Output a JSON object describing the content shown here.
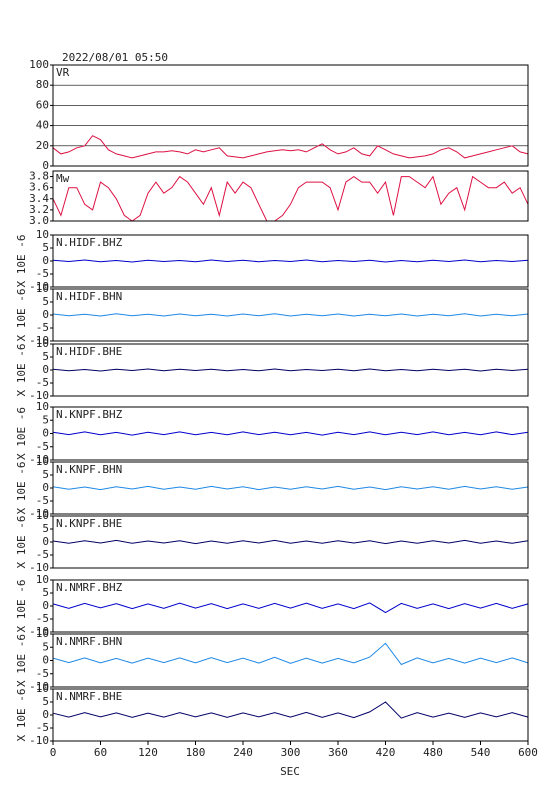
{
  "title": "2022/08/01 05:50",
  "x_axis": {
    "label": "SEC",
    "xlim": [
      0,
      600
    ],
    "xticks": [
      0,
      60,
      120,
      180,
      240,
      300,
      360,
      420,
      480,
      540,
      600
    ]
  },
  "chart_data": [
    {
      "type": "line",
      "label": "VR",
      "color": "#dd1144",
      "grid": true,
      "ylim": [
        0,
        100
      ],
      "yticks": [
        0,
        20,
        40,
        60,
        80,
        100
      ],
      "x": [
        0,
        10,
        20,
        30,
        40,
        50,
        60,
        70,
        80,
        90,
        100,
        110,
        120,
        130,
        140,
        150,
        160,
        170,
        180,
        190,
        200,
        210,
        220,
        230,
        240,
        250,
        260,
        270,
        280,
        290,
        300,
        310,
        320,
        330,
        340,
        350,
        360,
        370,
        380,
        390,
        400,
        410,
        420,
        430,
        440,
        450,
        460,
        470,
        480,
        490,
        500,
        510,
        520,
        530,
        540,
        550,
        560,
        570,
        580,
        590,
        600
      ],
      "values": [
        18,
        12,
        14,
        18,
        20,
        30,
        26,
        16,
        12,
        10,
        8,
        10,
        12,
        14,
        14,
        15,
        14,
        12,
        16,
        14,
        16,
        18,
        10,
        9,
        8,
        10,
        12,
        14,
        15,
        16,
        15,
        16,
        14,
        18,
        22,
        16,
        12,
        14,
        18,
        12,
        10,
        20,
        16,
        12,
        10,
        8,
        9,
        10,
        12,
        16,
        18,
        14,
        8,
        10,
        12,
        14,
        16,
        18,
        20,
        14,
        12
      ]
    },
    {
      "type": "line",
      "label": "Mw",
      "color": "#dd1144",
      "grid": false,
      "ylim": [
        3.0,
        3.9
      ],
      "yticks": [
        {
          "value": 3,
          "label": "3.0"
        },
        3.2,
        3.4,
        3.6,
        3.8
      ],
      "x": [
        0,
        10,
        20,
        30,
        40,
        50,
        60,
        70,
        80,
        90,
        100,
        110,
        120,
        130,
        140,
        150,
        160,
        170,
        180,
        190,
        200,
        210,
        220,
        230,
        240,
        250,
        260,
        270,
        280,
        290,
        300,
        310,
        320,
        330,
        340,
        350,
        360,
        370,
        380,
        390,
        400,
        410,
        420,
        430,
        440,
        450,
        460,
        470,
        480,
        490,
        500,
        510,
        520,
        530,
        540,
        550,
        560,
        570,
        580,
        590,
        600
      ],
      "values": [
        3.4,
        3.1,
        3.6,
        3.6,
        3.3,
        3.2,
        3.7,
        3.6,
        3.4,
        3.1,
        3.0,
        3.1,
        3.5,
        3.7,
        3.5,
        3.6,
        3.8,
        3.7,
        3.5,
        3.3,
        3.6,
        3.1,
        3.7,
        3.5,
        3.7,
        3.6,
        3.3,
        3.0,
        3.0,
        3.1,
        3.3,
        3.6,
        3.7,
        3.7,
        3.7,
        3.6,
        3.2,
        3.7,
        3.8,
        3.7,
        3.7,
        3.5,
        3.7,
        3.1,
        3.8,
        3.8,
        3.7,
        3.6,
        3.8,
        3.3,
        3.5,
        3.6,
        3.2,
        3.8,
        3.7,
        3.6,
        3.6,
        3.7,
        3.5,
        3.6,
        3.3
      ]
    },
    {
      "type": "line",
      "label": "N.HIDF.BHZ",
      "y_label": "X 10E -6",
      "color": "#0000cc",
      "ylim": [
        -10,
        10
      ],
      "yticks": [
        -10,
        -5,
        0,
        5,
        10
      ],
      "x": [
        0,
        20,
        40,
        60,
        80,
        100,
        120,
        140,
        160,
        180,
        200,
        220,
        240,
        260,
        280,
        300,
        320,
        340,
        360,
        380,
        400,
        420,
        440,
        460,
        480,
        500,
        520,
        540,
        560,
        580,
        600
      ],
      "values": [
        0.3,
        -0.2,
        0.4,
        -0.3,
        0.2,
        -0.4,
        0.3,
        -0.2,
        0.2,
        -0.3,
        0.4,
        -0.2,
        0.3,
        -0.3,
        0.2,
        -0.2,
        0.4,
        -0.3,
        0.2,
        -0.2,
        0.3,
        -0.4,
        0.2,
        -0.3,
        0.3,
        -0.2,
        0.4,
        -0.3,
        0.2,
        -0.2,
        0.3
      ]
    },
    {
      "type": "line",
      "label": "N.HIDF.BHN",
      "y_label": "X 10E -6",
      "color": "#1e88e5",
      "ylim": [
        -10,
        10
      ],
      "yticks": [
        -10,
        -5,
        0,
        5,
        10
      ],
      "x": [
        0,
        20,
        40,
        60,
        80,
        100,
        120,
        140,
        160,
        180,
        200,
        220,
        240,
        260,
        280,
        300,
        320,
        340,
        360,
        380,
        400,
        420,
        440,
        460,
        480,
        500,
        520,
        540,
        560,
        580,
        600
      ],
      "values": [
        0.4,
        -0.3,
        0.3,
        -0.4,
        0.5,
        -0.3,
        0.3,
        -0.4,
        0.4,
        -0.3,
        0.3,
        -0.4,
        0.4,
        -0.3,
        0.5,
        -0.4,
        0.3,
        -0.3,
        0.4,
        -0.4,
        0.3,
        -0.3,
        0.4,
        -0.4,
        0.3,
        -0.3,
        0.5,
        -0.4,
        0.3,
        -0.3,
        0.4
      ]
    },
    {
      "type": "line",
      "label": "N.HIDF.BHE",
      "y_label": "X 10E -6",
      "color": "#000066",
      "ylim": [
        -10,
        10
      ],
      "yticks": [
        -10,
        -5,
        0,
        5,
        10
      ],
      "x": [
        0,
        20,
        40,
        60,
        80,
        100,
        120,
        140,
        160,
        180,
        200,
        220,
        240,
        260,
        280,
        300,
        320,
        340,
        360,
        380,
        400,
        420,
        440,
        460,
        480,
        500,
        520,
        540,
        560,
        580,
        600
      ],
      "values": [
        0.3,
        -0.3,
        0.2,
        -0.4,
        0.3,
        -0.2,
        0.4,
        -0.3,
        0.3,
        -0.2,
        0.3,
        -0.3,
        0.2,
        -0.3,
        0.4,
        -0.3,
        0.2,
        -0.2,
        0.3,
        -0.3,
        0.4,
        -0.3,
        0.2,
        -0.3,
        0.3,
        -0.2,
        0.3,
        -0.4,
        0.3,
        -0.2,
        0.3
      ]
    },
    {
      "type": "line",
      "label": "N.KNPF.BHZ",
      "y_label": "X 10E -6",
      "color": "#0000cc",
      "ylim": [
        -10,
        10
      ],
      "yticks": [
        -10,
        -5,
        0,
        5,
        10
      ],
      "x": [
        0,
        20,
        40,
        60,
        80,
        100,
        120,
        140,
        160,
        180,
        200,
        220,
        240,
        260,
        280,
        300,
        320,
        340,
        360,
        380,
        400,
        420,
        440,
        460,
        480,
        500,
        520,
        540,
        560,
        580,
        600
      ],
      "values": [
        0.5,
        -0.4,
        0.6,
        -0.5,
        0.4,
        -0.6,
        0.5,
        -0.4,
        0.6,
        -0.5,
        0.4,
        -0.5,
        0.6,
        -0.4,
        0.5,
        -0.5,
        0.4,
        -0.6,
        0.5,
        -0.4,
        0.6,
        -0.5,
        0.5,
        -0.4,
        0.6,
        -0.5,
        0.4,
        -0.5,
        0.6,
        -0.4,
        0.5
      ]
    },
    {
      "type": "line",
      "label": "N.KNPF.BHN",
      "y_label": "X 10E -6",
      "color": "#1e88e5",
      "ylim": [
        -10,
        10
      ],
      "yticks": [
        -10,
        -5,
        0,
        5,
        10
      ],
      "x": [
        0,
        20,
        40,
        60,
        80,
        100,
        120,
        140,
        160,
        180,
        200,
        220,
        240,
        260,
        280,
        300,
        320,
        340,
        360,
        380,
        400,
        420,
        440,
        460,
        480,
        500,
        520,
        540,
        560,
        580,
        600
      ],
      "values": [
        0.5,
        -0.5,
        0.4,
        -0.6,
        0.5,
        -0.4,
        0.6,
        -0.5,
        0.4,
        -0.5,
        0.6,
        -0.4,
        0.5,
        -0.6,
        0.4,
        -0.5,
        0.5,
        -0.4,
        0.6,
        -0.5,
        0.4,
        -0.6,
        0.5,
        -0.4,
        0.5,
        -0.5,
        0.6,
        -0.4,
        0.5,
        -0.5,
        0.4
      ]
    },
    {
      "type": "line",
      "label": "N.KNPF.BHE",
      "y_label": "X 10E -6",
      "color": "#000066",
      "ylim": [
        -10,
        10
      ],
      "yticks": [
        -10,
        -5,
        0,
        5,
        10
      ],
      "x": [
        0,
        20,
        40,
        60,
        80,
        100,
        120,
        140,
        160,
        180,
        200,
        220,
        240,
        260,
        280,
        300,
        320,
        340,
        360,
        380,
        400,
        420,
        440,
        460,
        480,
        500,
        520,
        540,
        560,
        580,
        600
      ],
      "values": [
        0.4,
        -0.5,
        0.5,
        -0.4,
        0.6,
        -0.5,
        0.4,
        -0.4,
        0.5,
        -0.6,
        0.4,
        -0.5,
        0.5,
        -0.4,
        0.6,
        -0.5,
        0.4,
        -0.5,
        0.5,
        -0.4,
        0.5,
        -0.6,
        0.4,
        -0.5,
        0.5,
        -0.4,
        0.6,
        -0.5,
        0.4,
        -0.5,
        0.5
      ]
    },
    {
      "type": "line",
      "label": "N.NMRF.BHZ",
      "y_label": "X 10E -6",
      "color": "#0000cc",
      "ylim": [
        -10,
        10
      ],
      "yticks": [
        -10,
        -5,
        0,
        5,
        10
      ],
      "x": [
        0,
        20,
        40,
        60,
        80,
        100,
        120,
        140,
        160,
        180,
        200,
        220,
        240,
        260,
        280,
        300,
        320,
        340,
        360,
        380,
        400,
        420,
        440,
        460,
        480,
        500,
        520,
        540,
        560,
        580,
        600
      ],
      "values": [
        0.8,
        -0.9,
        1.0,
        -0.7,
        0.9,
        -1.0,
        0.8,
        -0.9,
        1.1,
        -0.8,
        0.9,
        -1.0,
        0.8,
        -0.9,
        1.0,
        -0.8,
        1.1,
        -0.9,
        0.8,
        -1.0,
        1.2,
        -2.5,
        1.0,
        -0.9,
        0.8,
        -1.0,
        0.9,
        -0.8,
        1.0,
        -0.9,
        0.8
      ]
    },
    {
      "type": "line",
      "label": "N.NMRF.BHN",
      "y_label": "X 10E -6",
      "color": "#1e88e5",
      "ylim": [
        -10,
        10
      ],
      "yticks": [
        -10,
        -5,
        0,
        5,
        10
      ],
      "x": [
        0,
        20,
        40,
        60,
        80,
        100,
        120,
        140,
        160,
        180,
        200,
        220,
        240,
        260,
        280,
        300,
        320,
        340,
        360,
        380,
        400,
        420,
        440,
        460,
        480,
        500,
        520,
        540,
        560,
        580,
        600
      ],
      "values": [
        0.9,
        -0.8,
        1.0,
        -0.9,
        0.8,
        -1.0,
        0.9,
        -0.8,
        1.0,
        -0.9,
        1.1,
        -0.8,
        0.9,
        -1.0,
        1.2,
        -1.1,
        0.9,
        -1.0,
        0.8,
        -0.9,
        1.3,
        6.5,
        -1.5,
        1.0,
        -0.9,
        0.8,
        -1.0,
        0.9,
        -0.8,
        1.0,
        -0.9
      ]
    },
    {
      "type": "line",
      "label": "N.NMRF.BHE",
      "y_label": "X 10E -6",
      "color": "#000066",
      "ylim": [
        -10,
        10
      ],
      "yticks": [
        -10,
        -5,
        0,
        5,
        10
      ],
      "x": [
        0,
        20,
        40,
        60,
        80,
        100,
        120,
        140,
        160,
        180,
        200,
        220,
        240,
        260,
        280,
        300,
        320,
        340,
        360,
        380,
        400,
        420,
        440,
        460,
        480,
        500,
        520,
        540,
        560,
        580,
        600
      ],
      "values": [
        0.7,
        -0.8,
        0.9,
        -0.7,
        0.8,
        -0.9,
        0.7,
        -0.8,
        0.9,
        -0.7,
        0.8,
        -0.9,
        0.8,
        -0.7,
        0.9,
        -0.8,
        1.0,
        -0.9,
        0.8,
        -1.0,
        1.2,
        5.0,
        -1.2,
        0.9,
        -0.8,
        0.7,
        -0.9,
        0.8,
        -0.7,
        0.9,
        -0.8
      ]
    }
  ]
}
